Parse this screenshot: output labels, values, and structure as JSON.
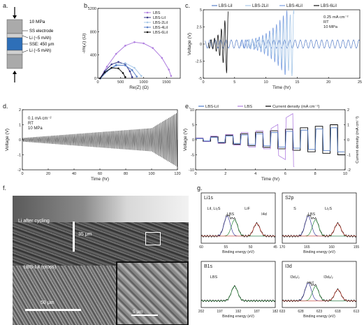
{
  "labels": {
    "a": "a.",
    "b": "b.",
    "c": "c.",
    "d": "d.",
    "e": "e.",
    "f": "f.",
    "g": "g."
  },
  "panel_a": {
    "pressure_top": "10 MPa",
    "layers": [
      "SS electrode",
      "Li (~5 mAh)",
      "SSE: 450 μm",
      "Li (~5 mAh)"
    ]
  },
  "chart_data": [
    {
      "panel": "b",
      "type": "line",
      "xlabel": "Re(Z) (Ω)",
      "ylabel": "-Im(Z) (Ω)",
      "xlim": [
        0,
        1800
      ],
      "ylim": [
        0,
        1200
      ],
      "xticks": [
        0,
        500,
        1000,
        1500
      ],
      "yticks": [
        0,
        400,
        800,
        1200
      ],
      "series": [
        {
          "name": "LBS",
          "color": "#b07fe0",
          "x": [
            50,
            200,
            400,
            600,
            800,
            1000,
            1200,
            1400,
            1550,
            1600
          ],
          "y": [
            0,
            200,
            420,
            560,
            620,
            600,
            520,
            350,
            150,
            40
          ]
        },
        {
          "name": "LBS-LiI",
          "color": "#3a3a8a",
          "x": [
            50,
            150,
            300,
            450,
            600,
            700,
            750
          ],
          "y": [
            0,
            120,
            240,
            280,
            240,
            120,
            20
          ]
        },
        {
          "name": "LBS-2LiI",
          "color": "#a8c8e8",
          "x": [
            60,
            200,
            400,
            600,
            800,
            950
          ],
          "y": [
            0,
            130,
            240,
            260,
            180,
            40
          ]
        },
        {
          "name": "LBS-4LiI",
          "color": "#5a80c8",
          "x": [
            60,
            200,
            400,
            600,
            750,
            850
          ],
          "y": [
            0,
            120,
            220,
            220,
            140,
            30
          ]
        },
        {
          "name": "LBS-6LiI",
          "color": "#111111",
          "x": [
            50,
            150,
            300,
            450,
            550,
            600
          ],
          "y": [
            0,
            100,
            180,
            170,
            90,
            20
          ]
        }
      ]
    },
    {
      "panel": "c",
      "type": "line",
      "xlabel": "Time (hr)",
      "ylabel": "Voltage (V)",
      "xlim": [
        0,
        25
      ],
      "ylim": [
        -5,
        5
      ],
      "xticks": [
        0,
        5,
        10,
        15,
        20,
        25
      ],
      "yticks": [
        -5,
        -2.5,
        0,
        2.5,
        5
      ],
      "legend": [
        "LBS-LiI",
        "LBS-2LiI",
        "LBS-4LiI",
        "LBS-6LiI"
      ],
      "legend_colors": [
        "#5a80c8",
        "#a8c8e8",
        "#7a9ee0",
        "#111111"
      ],
      "annotation": [
        "0.25 mA cm⁻²",
        "RT",
        "10 MPa"
      ],
      "series": [
        {
          "name": "LBS-6LiI",
          "color": "#111111",
          "x_end": 4,
          "amplitude_growth": "fail"
        },
        {
          "name": "LBS-2LiI",
          "color": "#a8c8e8",
          "x_end": 14.5,
          "amplitude_growth": "fail"
        },
        {
          "name": "LBS-4LiI",
          "color": "#7a9ee0",
          "x_end": 13.5,
          "amplitude_growth": "fail"
        },
        {
          "name": "LBS-LiI",
          "color": "#5a80c8",
          "x_end": 25,
          "amplitude": 0.6
        }
      ]
    },
    {
      "panel": "d",
      "type": "line",
      "xlabel": "Time (hr)",
      "ylabel": "Voltage (V)",
      "xlim": [
        0,
        120
      ],
      "ylim": [
        -2,
        2
      ],
      "xticks": [
        0,
        20,
        40,
        60,
        80,
        100,
        120
      ],
      "yticks": [
        -2,
        -1,
        0,
        1,
        2
      ],
      "annotation": [
        "0.1 mA cm⁻²",
        "RT",
        "10 MPa"
      ],
      "series": [
        {
          "name": "LBS-LiI",
          "color": "#000000",
          "amplitude_start": 0.1,
          "amplitude_end": 1.0,
          "rise_end": 1.8
        }
      ]
    },
    {
      "panel": "e",
      "type": "line",
      "xlabel": "Time (hr)",
      "ylabel": "Voltage (V)",
      "y2label": "Current density (mA cm⁻²)",
      "xlim": [
        0,
        10
      ],
      "ylim": [
        -10,
        10
      ],
      "y2lim": [
        -2,
        2
      ],
      "xticks": [
        0,
        2,
        4,
        6,
        8,
        10
      ],
      "yticks": [
        -10,
        -5,
        0,
        5,
        10
      ],
      "y2ticks": [
        -2,
        -1,
        0,
        1,
        2
      ],
      "legend": [
        "LBS-LiI",
        "LBS",
        "Current density (mA cm⁻²)"
      ],
      "legend_colors": [
        "#4a78c8",
        "#b07fe0",
        "#000000"
      ],
      "current_steps": [
        0.1,
        0.2,
        0.3,
        0.4,
        0.5,
        0.6,
        0.7,
        0.8,
        0.9,
        1.0
      ]
    }
  ],
  "panel_f": {
    "labels": {
      "li_after": "Li after cycling",
      "thickness": "35 μm",
      "lbs_lii": "LBS-LiI (cross)",
      "scale1": "50 μm",
      "scale2": "5 μm"
    }
  },
  "panel_g": {
    "xlabel": "Binding energy (eV)",
    "subpanels": [
      {
        "title": "Li1s",
        "peaks": [
          "LiI, Li₂S",
          "LBS",
          "LiF",
          "I4d"
        ],
        "xticks": [
          "60",
          "55",
          "50",
          "45"
        ]
      },
      {
        "title": "S2p",
        "peaks": [
          "S",
          "LBS",
          "Li₂S"
        ],
        "xticks": [
          "170",
          "165",
          "160",
          "155"
        ]
      },
      {
        "title": "B1s",
        "peaks": [
          "LBS"
        ],
        "xticks": [
          "202",
          "197",
          "192",
          "187",
          "182"
        ]
      },
      {
        "title": "I3d",
        "peaks": [
          "I3d₃/₂",
          "LiI",
          "I3d₅/₂"
        ],
        "xticks": [
          "633",
          "628",
          "623",
          "618",
          "613"
        ]
      }
    ]
  }
}
